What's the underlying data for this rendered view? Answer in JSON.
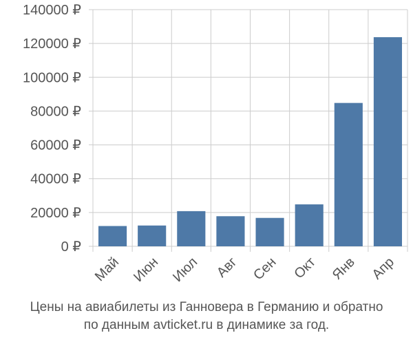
{
  "chart_data": {
    "type": "bar",
    "categories": [
      "Май",
      "Июн",
      "Июл",
      "Авг",
      "Сен",
      "Окт",
      "Янв",
      "Апр"
    ],
    "values": [
      12000,
      12300,
      20800,
      17800,
      16800,
      24800,
      84800,
      123700
    ],
    "ylim": [
      0,
      140000
    ],
    "yticks": [
      0,
      20000,
      40000,
      60000,
      80000,
      100000,
      120000,
      140000
    ],
    "ytick_labels": [
      "0 ₽",
      "20000 ₽",
      "40000 ₽",
      "60000 ₽",
      "80000 ₽",
      "100000 ₽",
      "120000 ₽",
      "140000 ₽"
    ],
    "grid": true,
    "bar_color": "#4e79a7",
    "grid_color": "#cccccc",
    "text_color": "#555555"
  },
  "caption": {
    "line1": "Цены на авиабилеты из Ганновера в Германию и обратно",
    "line2": "по данным avticket.ru в динамике за год."
  }
}
